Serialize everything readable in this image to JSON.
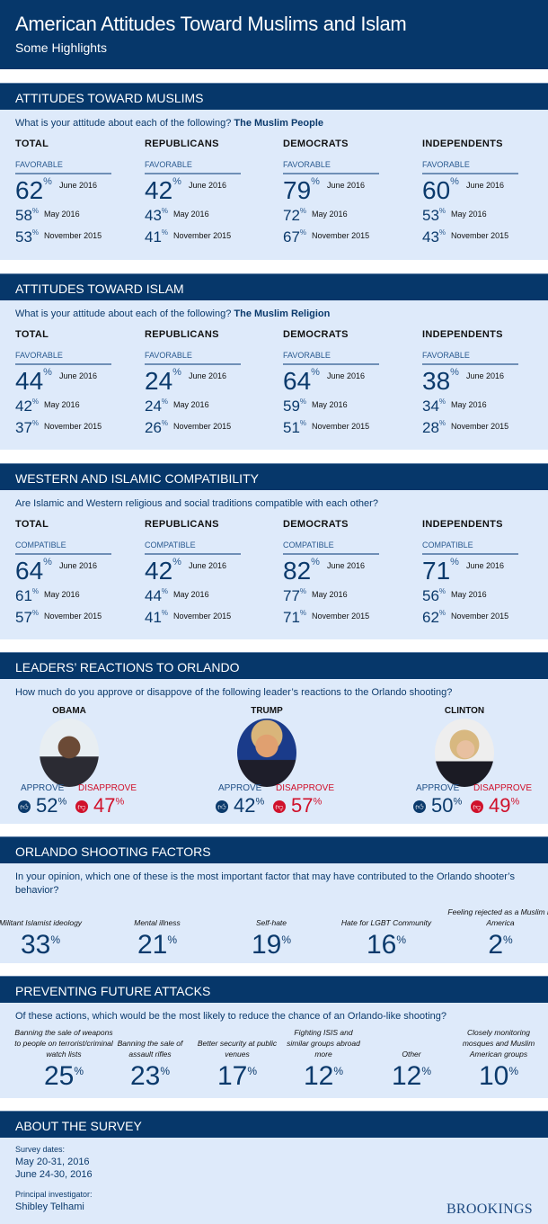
{
  "title": "American Attitudes Toward Muslims and Islam",
  "subtitle": "Some Highlights",
  "stat_sections": [
    {
      "heading": "ATTITUDES TOWARD MUSLIMS",
      "question": "What is your attitude about each of the following?",
      "question_bold": "The Muslim People",
      "groups": [
        {
          "name": "TOTAL",
          "label": "FAVORABLE",
          "rows": [
            {
              "value": "62",
              "date": "June 2016"
            },
            {
              "value": "58",
              "date": "May 2016"
            },
            {
              "value": "53",
              "date": "November 2015"
            }
          ]
        },
        {
          "name": "REPUBLICANS",
          "label": "FAVORABLE",
          "rows": [
            {
              "value": "42",
              "date": "June 2016"
            },
            {
              "value": "43",
              "date": "May 2016"
            },
            {
              "value": "41",
              "date": "November 2015"
            }
          ]
        },
        {
          "name": "DEMOCRATS",
          "label": "FAVORABLE",
          "rows": [
            {
              "value": "79",
              "date": "June 2016"
            },
            {
              "value": "72",
              "date": "May 2016"
            },
            {
              "value": "67",
              "date": "November 2015"
            }
          ]
        },
        {
          "name": "INDEPENDENTS",
          "label": "FAVORABLE",
          "rows": [
            {
              "value": "60",
              "date": "June 2016"
            },
            {
              "value": "53",
              "date": "May 2016"
            },
            {
              "value": "43",
              "date": "November 2015"
            }
          ]
        }
      ]
    },
    {
      "heading": "ATTITUDES TOWARD ISLAM",
      "question": "What is your attitude about each of the following?",
      "question_bold": "The Muslim Religion",
      "groups": [
        {
          "name": "TOTAL",
          "label": "FAVORABLE",
          "rows": [
            {
              "value": "44",
              "date": "June 2016"
            },
            {
              "value": "42",
              "date": "May 2016"
            },
            {
              "value": "37",
              "date": "November 2015"
            }
          ]
        },
        {
          "name": "REPUBLICANS",
          "label": "FAVORABLE",
          "rows": [
            {
              "value": "24",
              "date": "June 2016"
            },
            {
              "value": "24",
              "date": "May 2016"
            },
            {
              "value": "26",
              "date": "November 2015"
            }
          ]
        },
        {
          "name": "DEMOCRATS",
          "label": "FAVORABLE",
          "rows": [
            {
              "value": "64",
              "date": "June 2016"
            },
            {
              "value": "59",
              "date": "May 2016"
            },
            {
              "value": "51",
              "date": "November 2015"
            }
          ]
        },
        {
          "name": "INDEPENDENTS",
          "label": "FAVORABLE",
          "rows": [
            {
              "value": "38",
              "date": "June 2016"
            },
            {
              "value": "34",
              "date": "May 2016"
            },
            {
              "value": "28",
              "date": "November 2015"
            }
          ]
        }
      ]
    },
    {
      "heading": "WESTERN AND ISLAMIC COMPATIBILITY",
      "question": "Are Islamic and Western religious and social traditions compatible with each other?",
      "question_bold": "",
      "groups": [
        {
          "name": "TOTAL",
          "label": "COMPATIBLE",
          "rows": [
            {
              "value": "64",
              "date": "June 2016"
            },
            {
              "value": "61",
              "date": "May 2016"
            },
            {
              "value": "57",
              "date": "November 2015"
            }
          ]
        },
        {
          "name": "REPUBLICANS",
          "label": "COMPATIBLE",
          "rows": [
            {
              "value": "42",
              "date": "June 2016"
            },
            {
              "value": "44",
              "date": "May 2016"
            },
            {
              "value": "41",
              "date": "November 2015"
            }
          ]
        },
        {
          "name": "DEMOCRATS",
          "label": "COMPATIBLE",
          "rows": [
            {
              "value": "82",
              "date": "June 2016"
            },
            {
              "value": "77",
              "date": "May 2016"
            },
            {
              "value": "71",
              "date": "November 2015"
            }
          ]
        },
        {
          "name": "INDEPENDENTS",
          "label": "COMPATIBLE",
          "rows": [
            {
              "value": "71",
              "date": "June 2016"
            },
            {
              "value": "56",
              "date": "May 2016"
            },
            {
              "value": "62",
              "date": "November 2015"
            }
          ]
        }
      ]
    }
  ],
  "leaders": {
    "heading": "LEADERS’ REACTIONS TO ORLANDO",
    "question": "How much do you approve or disappove of the following leader’s reactions to the Orlando shooting?",
    "approve_label": "APPROVE",
    "disapprove_label": "DISAPPROVE",
    "items": [
      {
        "name": "OBAMA",
        "approve": "52",
        "disapprove": "47"
      },
      {
        "name": "TRUMP",
        "approve": "42",
        "disapprove": "57"
      },
      {
        "name": "CLINTON",
        "approve": "50",
        "disapprove": "49"
      }
    ]
  },
  "factors": {
    "heading": "ORLANDO SHOOTING FACTORS",
    "question": "In your opinion, which one of these is the most important factor that may have contributed to the Orlando shooter’s behavior?",
    "items": [
      {
        "label": "Militant Islamist ideology",
        "value": "33"
      },
      {
        "label": "Mental illness",
        "value": "21"
      },
      {
        "label": "Self-hate",
        "value": "19"
      },
      {
        "label": "Hate for LGBT Community",
        "value": "16"
      },
      {
        "label": "Feeling rejected as a Muslim in America",
        "value": "2"
      }
    ]
  },
  "prevent": {
    "heading": "PREVENTING FUTURE ATTACKS",
    "question": "Of these actions, which would be the most likely to reduce the chance of an Orlando-like shooting?",
    "items": [
      {
        "label": "Banning the sale of weapons to people on terrorist/criminal watch lists",
        "value": "25"
      },
      {
        "label": "Banning the sale of assault rifles",
        "value": "23"
      },
      {
        "label": "Better security at public venues",
        "value": "17"
      },
      {
        "label": "Fighting ISIS and similar groups abroad more",
        "value": "12"
      },
      {
        "label": "Other",
        "value": "12"
      },
      {
        "label": "Closely monitoring mosques and Muslim American groups",
        "value": "10"
      }
    ]
  },
  "about": {
    "heading": "ABOUT THE SURVEY",
    "dates_label": "Survey dates:",
    "dates": [
      "May 20-31, 2016",
      "June 24-30, 2016"
    ],
    "investigator_label": "Principal investigator:",
    "investigator": "Shibley Telhami",
    "logo": "BROOKINGS"
  },
  "percent_sign": "%",
  "colors": {
    "navy": "#06376a",
    "panel": "#deeafa",
    "red": "#d0112b"
  }
}
